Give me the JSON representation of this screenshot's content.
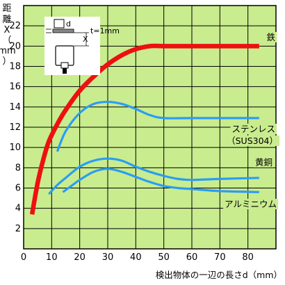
{
  "chart_data": {
    "type": "line",
    "title": "",
    "xlabel": "検出物体の一辺の長さd（mm）",
    "ylabel_chars": [
      "距",
      "離",
      "X",
      "（",
      "mm",
      "）"
    ],
    "xlim": [
      0,
      90
    ],
    "ylim": [
      0,
      24
    ],
    "xticks": [
      0,
      10,
      20,
      30,
      40,
      50,
      60,
      70,
      80
    ],
    "yticks": [
      2,
      4,
      6,
      8,
      10,
      12,
      14,
      16,
      18,
      20,
      22
    ],
    "grid": true,
    "colors": {
      "background": "#c9ec8e",
      "iron": "#ee1010",
      "stainless": "#2a9df4",
      "brass": "#2a9df4",
      "aluminum": "#2a9df4",
      "grid": "#000000"
    },
    "series": [
      {
        "name": "鉄",
        "values": [
          [
            3,
            3.4
          ],
          [
            5,
            6.5
          ],
          [
            7,
            8.8
          ],
          [
            9,
            10.6
          ],
          [
            12,
            12.3
          ],
          [
            15,
            13.7
          ],
          [
            20,
            15.6
          ],
          [
            25,
            17
          ],
          [
            30,
            18.2
          ],
          [
            35,
            19.1
          ],
          [
            40,
            19.7
          ],
          [
            45,
            20
          ],
          [
            50,
            20
          ],
          [
            60,
            20
          ],
          [
            70,
            20
          ],
          [
            84,
            20
          ]
        ]
      },
      {
        "name": "ステンレス（SUS304）",
        "values": [
          [
            12,
            9.6
          ],
          [
            15,
            11.6
          ],
          [
            20,
            13.4
          ],
          [
            25,
            14.3
          ],
          [
            30,
            14.5
          ],
          [
            35,
            14.3
          ],
          [
            40,
            13.8
          ],
          [
            45,
            13.2
          ],
          [
            50,
            12.9
          ],
          [
            60,
            12.9
          ],
          [
            70,
            12.9
          ],
          [
            84,
            12.9
          ]
        ]
      },
      {
        "name": "黄銅",
        "values": [
          [
            9,
            5.4
          ],
          [
            12,
            6.3
          ],
          [
            15,
            7
          ],
          [
            20,
            8.1
          ],
          [
            25,
            8.7
          ],
          [
            30,
            8.9
          ],
          [
            35,
            8.7
          ],
          [
            40,
            8.1
          ],
          [
            45,
            7.6
          ],
          [
            50,
            7.2
          ],
          [
            55,
            6.9
          ],
          [
            60,
            6.8
          ],
          [
            70,
            6.9
          ],
          [
            84,
            7
          ]
        ]
      },
      {
        "name": "アルミニウム",
        "values": [
          [
            14,
            5.6
          ],
          [
            17,
            6.2
          ],
          [
            20,
            6.8
          ],
          [
            25,
            7.6
          ],
          [
            30,
            7.9
          ],
          [
            35,
            7.6
          ],
          [
            40,
            7.1
          ],
          [
            45,
            6.6
          ],
          [
            50,
            6.2
          ],
          [
            55,
            6
          ],
          [
            60,
            5.9
          ],
          [
            70,
            5.7
          ],
          [
            84,
            5.6
          ]
        ]
      }
    ],
    "inset": {
      "d_label": "d",
      "t_label": "t=1mm",
      "x_label": "X"
    }
  }
}
